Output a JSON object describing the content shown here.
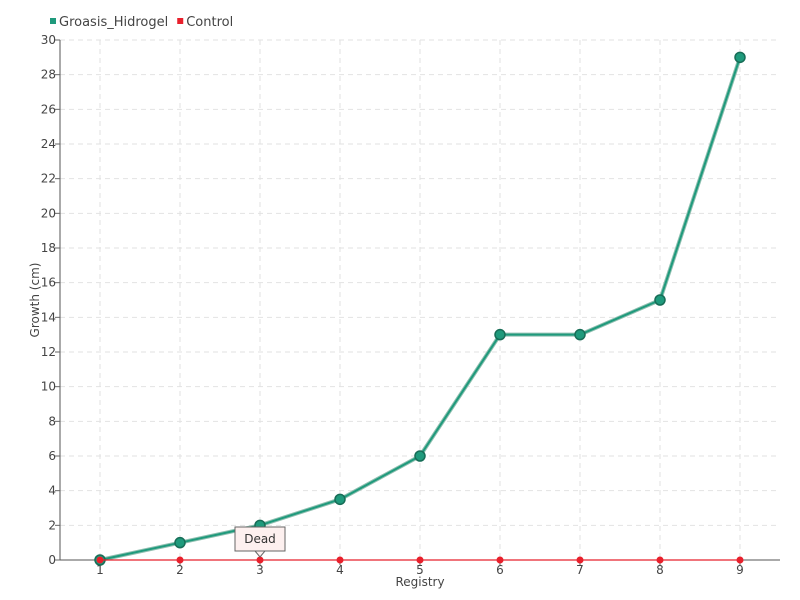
{
  "chart_data": {
    "type": "line",
    "categories": [
      "1",
      "2",
      "3",
      "4",
      "5",
      "6",
      "7",
      "8",
      "9"
    ],
    "series": [
      {
        "name": "Groasis_Hidrogel",
        "color": "#1f9a7c",
        "values": [
          0,
          1,
          2,
          3.5,
          6,
          13,
          13,
          15,
          29
        ]
      },
      {
        "name": "Control",
        "color": "#e8202c",
        "values": [
          0,
          0,
          0,
          0,
          0,
          0,
          0,
          0,
          0
        ]
      }
    ],
    "xlabel": "Registry",
    "ylabel": "Growth (cm)",
    "ylim": [
      0,
      30
    ],
    "yticks": [
      0,
      2,
      4,
      6,
      8,
      10,
      12,
      14,
      16,
      18,
      20,
      22,
      24,
      26,
      28,
      30
    ],
    "grid": true,
    "legend": "top-left",
    "annotation": {
      "text": "Dead",
      "series": "Control",
      "category": "3",
      "value": 0
    }
  }
}
